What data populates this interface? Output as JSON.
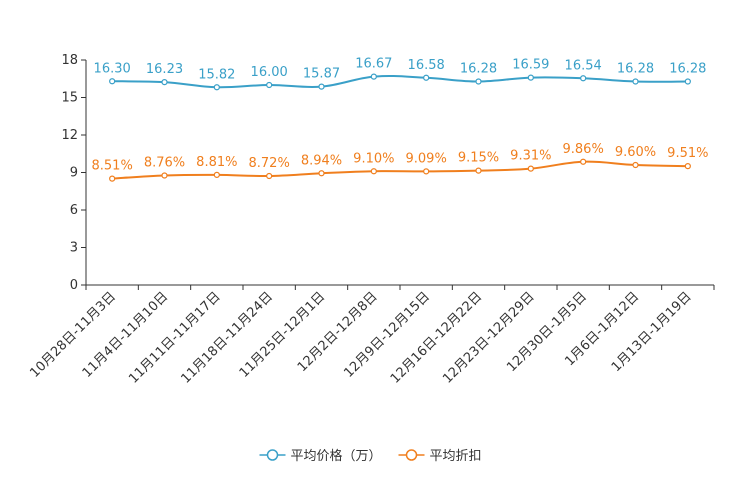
{
  "chart_data": {
    "type": "line",
    "title": "",
    "xlabel": "",
    "ylabel": "",
    "ylim": [
      0,
      18
    ],
    "yticks": [
      0,
      3,
      6,
      9,
      12,
      15,
      18
    ],
    "grid": false,
    "legend_position": "bottom-center",
    "categories": [
      "10月28日-11月3日",
      "11月4日-11月10日",
      "11月11日-11月17日",
      "11月18日-11月24日",
      "11月25日-12月1日",
      "12月2日-12月8日",
      "12月9日-12月15日",
      "12月16日-12月22日",
      "12月23日-12月29日",
      "12月30日-1月5日",
      "1月6日-1月12日",
      "1月13日-1月19日"
    ],
    "series": [
      {
        "name": "平均价格（万）",
        "color": "#3aa0c8",
        "values": [
          16.3,
          16.23,
          15.82,
          16.0,
          15.87,
          16.67,
          16.58,
          16.28,
          16.59,
          16.54,
          16.28,
          16.28
        ],
        "labels": [
          "16.30",
          "16.23",
          "15.82",
          "16.00",
          "15.87",
          "16.67",
          "16.58",
          "16.28",
          "16.59",
          "16.54",
          "16.28",
          "16.28"
        ]
      },
      {
        "name": "平均折扣",
        "color": "#f07f1e",
        "values": [
          8.51,
          8.76,
          8.81,
          8.72,
          8.94,
          9.1,
          9.09,
          9.15,
          9.31,
          9.86,
          9.6,
          9.51
        ],
        "labels": [
          "8.51%",
          "8.76%",
          "8.81%",
          "8.72%",
          "8.94%",
          "9.10%",
          "9.09%",
          "9.15%",
          "9.31%",
          "9.86%",
          "9.60%",
          "9.51%"
        ]
      }
    ]
  }
}
